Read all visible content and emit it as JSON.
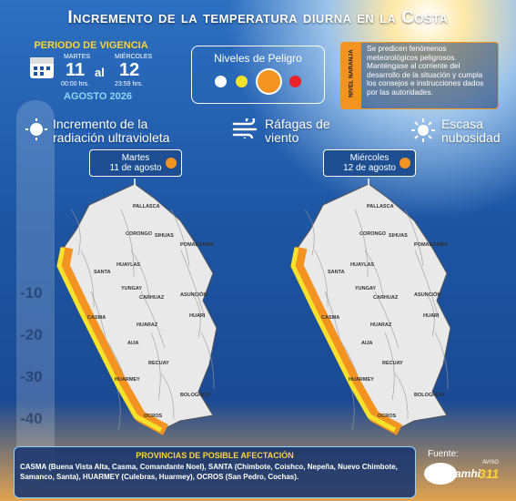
{
  "header": {
    "title": "Incremento de la temperatura diurna en la Costa"
  },
  "period": {
    "label": "PERIODO DE VIGENCIA",
    "start_day": "MARTES",
    "start_date": "11",
    "connector": "al",
    "end_day": "MIÉRCOLES",
    "end_date": "12",
    "start_time": "00:00 hrs.",
    "end_time": "23:59 hrs.",
    "month": "AGOSTO 2026"
  },
  "levels": {
    "title": "Niveles de Peligro"
  },
  "alert": {
    "level": "NIVEL NARANJA",
    "message": "Se predicen fenómenos meteorológicos peligrosos. Manténgase al corriente del desarrollo de la situación y cumpla los consejos e instrucciones dados por las autoridades."
  },
  "factors": [
    "Incremento de la radiación ultravioleta",
    "Ráfagas de viento",
    "Escasa nubosidad"
  ],
  "thermometer": [
    "-10",
    "-20",
    "-30",
    "-40"
  ],
  "maps": [
    {
      "day": "Martes",
      "date": "11 de agosto"
    },
    {
      "day": "Miércoles",
      "date": "12 de agosto"
    }
  ],
  "provinces": [
    "PALLASCA",
    "CORONGO",
    "SIHUAS",
    "POMABAMBA",
    "HUAYLAS",
    "SANTA",
    "YUNGAY",
    "CARHUAZ",
    "ASUNCIÓN",
    "HUARI",
    "CASMA",
    "HUARAZ",
    "AIJA",
    "RECUAY",
    "HUARMEY",
    "BOLOGNESI",
    "OCROS"
  ],
  "footer": {
    "title": "PROVINCIAS DE POSIBLE AFECTACIÓN",
    "text": "CASMA (Buena Vista Alta, Casma, Comandante Noel), SANTA (Chimbote, Coishco, Nepeña, Nuevo Chimbote, Samanco, Santa), HUARMEY (Culebras, Huarmey), OCROS (San Pedro, Cochas).",
    "source": "Fuente:",
    "brand": "Senamhi",
    "notice": "AVISO",
    "number": "311"
  }
}
